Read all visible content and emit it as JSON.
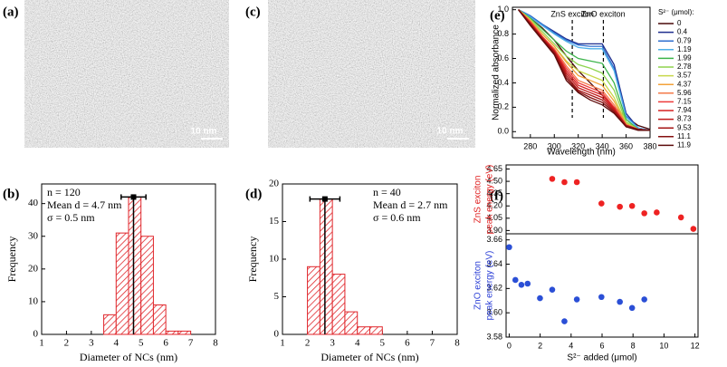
{
  "images": [
    {
      "label": "(a)",
      "scale_bar": "10 nm"
    },
    {
      "label": "(c)",
      "scale_bar": "10 nm"
    }
  ],
  "chart_data": [
    {
      "type": "histogram",
      "panel_label": "(b)",
      "xlabel": "Diameter of NCs (nm)",
      "ylabel": "Frequency",
      "bins": [
        3.5,
        4,
        4.5,
        5,
        5.5,
        6,
        6.5,
        7
      ],
      "counts": [
        6,
        31,
        42,
        30,
        9,
        1,
        1
      ],
      "color": "#e0262b",
      "xlim": [
        1,
        8
      ],
      "xticks": [
        1,
        2,
        3,
        4,
        5,
        6,
        7,
        8
      ],
      "ylim": [
        0,
        46
      ],
      "yticks": [
        0,
        10,
        20,
        30,
        40
      ],
      "annotations": [
        "n = 120",
        "Mean d = 4.7 nm",
        "σ  = 0.5 nm"
      ],
      "mean": {
        "x": 4.7,
        "error": 0.5,
        "y": 42
      }
    },
    {
      "type": "histogram",
      "panel_label": "(d)",
      "xlabel": "Diameter of NCs (nm)",
      "ylabel": "Frequency",
      "bins": [
        2,
        2.5,
        3,
        3.5,
        4,
        4.5,
        5
      ],
      "counts": [
        9,
        18,
        8,
        3,
        1,
        1
      ],
      "color": "#e0262b",
      "xlim": [
        1,
        8
      ],
      "xticks": [
        1,
        2,
        3,
        4,
        5,
        6,
        7,
        8
      ],
      "ylim": [
        0,
        20
      ],
      "yticks": [
        0,
        5,
        10,
        15,
        20
      ],
      "annotations": [
        "n = 40",
        "Mean d = 2.7 nm",
        "σ  = 0.6 nm"
      ],
      "mean": {
        "x": 2.7,
        "error": 0.6,
        "y": 18
      }
    },
    {
      "type": "line",
      "panel_label": "(e)",
      "xlabel": "Wavelength (nm)",
      "ylabel": "Normalized absorbance",
      "legend_title": "S²⁻ (μmol):",
      "legend": "right",
      "x": [
        270,
        280,
        290,
        300,
        310,
        320,
        330,
        340,
        350,
        360,
        370,
        380
      ],
      "xlim": [
        265,
        380
      ],
      "xticks": [
        280,
        300,
        320,
        340,
        360,
        380
      ],
      "ylim": [
        -0.05,
        1.02
      ],
      "yticks": [
        {
          "value": 0,
          "label": "0.0"
        },
        0.2,
        0.4,
        0.6,
        0.8,
        {
          "value": 1,
          "label": "1.0"
        }
      ],
      "annotations": [
        {
          "text": "ZnS exciton",
          "x": 315
        },
        {
          "text": "ZnO exciton",
          "x": 341
        }
      ],
      "series": [
        {
          "name": "0",
          "color": "#4a0a0a",
          "values": [
            1.0,
            0.93,
            0.85,
            0.75,
            0.62,
            0.5,
            0.4,
            0.3,
            0.2,
            0.12,
            0.05,
            0.02
          ]
        },
        {
          "name": "0.4",
          "color": "#1f2f8f",
          "values": [
            1.0,
            0.95,
            0.88,
            0.82,
            0.76,
            0.72,
            0.72,
            0.72,
            0.55,
            0.15,
            0.03,
            0.01
          ]
        },
        {
          "name": "0.79",
          "color": "#2f6fcf",
          "values": [
            1.0,
            0.95,
            0.88,
            0.81,
            0.75,
            0.71,
            0.7,
            0.7,
            0.52,
            0.13,
            0.03,
            0.01
          ]
        },
        {
          "name": "1.19",
          "color": "#4fb0e8",
          "values": [
            1.0,
            0.94,
            0.87,
            0.8,
            0.74,
            0.69,
            0.68,
            0.68,
            0.5,
            0.12,
            0.03,
            0.01
          ]
        },
        {
          "name": "1.99",
          "color": "#3cb44b",
          "values": [
            1.0,
            0.93,
            0.84,
            0.75,
            0.66,
            0.6,
            0.58,
            0.56,
            0.4,
            0.1,
            0.02,
            0.01
          ]
        },
        {
          "name": "2.78",
          "color": "#8fd44f",
          "values": [
            1.0,
            0.92,
            0.82,
            0.72,
            0.62,
            0.55,
            0.52,
            0.48,
            0.34,
            0.08,
            0.02,
            0.01
          ]
        },
        {
          "name": "3.57",
          "color": "#c8d84a",
          "values": [
            1.0,
            0.92,
            0.8,
            0.7,
            0.58,
            0.5,
            0.46,
            0.42,
            0.28,
            0.07,
            0.02,
            0.01
          ]
        },
        {
          "name": "4.37",
          "color": "#f3a23a",
          "values": [
            1.0,
            0.91,
            0.8,
            0.7,
            0.57,
            0.46,
            0.42,
            0.38,
            0.25,
            0.06,
            0.02,
            0.01
          ]
        },
        {
          "name": "5.96",
          "color": "#f47a4a",
          "values": [
            1.0,
            0.9,
            0.78,
            0.68,
            0.54,
            0.42,
            0.38,
            0.34,
            0.22,
            0.06,
            0.02,
            0.01
          ]
        },
        {
          "name": "7.15",
          "color": "#ee3b3b",
          "values": [
            1.0,
            0.9,
            0.78,
            0.67,
            0.52,
            0.4,
            0.36,
            0.32,
            0.2,
            0.05,
            0.02,
            0.01
          ]
        },
        {
          "name": "7.94",
          "color": "#d62020",
          "values": [
            1.0,
            0.89,
            0.77,
            0.66,
            0.5,
            0.38,
            0.34,
            0.3,
            0.19,
            0.05,
            0.02,
            0.01
          ]
        },
        {
          "name": "8.73",
          "color": "#c01818",
          "values": [
            1.0,
            0.89,
            0.77,
            0.66,
            0.48,
            0.36,
            0.32,
            0.28,
            0.18,
            0.05,
            0.02,
            0.01
          ]
        },
        {
          "name": "9.53",
          "color": "#a51515",
          "values": [
            1.0,
            0.88,
            0.76,
            0.65,
            0.46,
            0.34,
            0.3,
            0.26,
            0.17,
            0.05,
            0.02,
            0.01
          ]
        },
        {
          "name": "11.1",
          "color": "#851010",
          "values": [
            1.0,
            0.88,
            0.76,
            0.64,
            0.44,
            0.33,
            0.28,
            0.24,
            0.16,
            0.04,
            0.02,
            0.01
          ]
        },
        {
          "name": "11.9",
          "color": "#5e0c0c",
          "values": [
            1.0,
            0.87,
            0.75,
            0.63,
            0.42,
            0.32,
            0.26,
            0.22,
            0.15,
            0.04,
            0.01,
            0.01
          ]
        }
      ]
    },
    {
      "type": "scatter",
      "panel_label": "(f)",
      "ylabel": [
        "ZnS exciton",
        "peak energy (eV)"
      ],
      "ylabel_color": "#e02020",
      "color": "#ee2222",
      "x": [
        2.78,
        3.57,
        4.37,
        5.96,
        7.15,
        7.94,
        8.73,
        9.53,
        11.1,
        11.9
      ],
      "values": [
        4.53,
        4.49,
        4.49,
        4.23,
        4.19,
        4.2,
        4.11,
        4.12,
        4.06,
        3.92
      ],
      "xlim": [
        -0.2,
        12.2
      ],
      "ylim": [
        3.86,
        4.7
      ],
      "yticks": [
        {
          "value": 3.9,
          "label": "3.90"
        },
        4.05,
        {
          "value": 4.2,
          "label": "4.20"
        },
        4.35,
        {
          "value": 4.5,
          "label": "4.50"
        },
        4.65
      ]
    },
    {
      "type": "scatter",
      "ylabel": [
        "ZnO exciton",
        "peak energy (eV)"
      ],
      "ylabel_color": "#2b3fd6",
      "color": "#2b4fd6",
      "xlabel": "S²⁻ added (μmol)",
      "x": [
        0,
        0.4,
        0.79,
        1.19,
        1.99,
        2.78,
        3.57,
        4.37,
        5.96,
        7.15,
        7.94,
        8.73
      ],
      "values": [
        3.654,
        3.627,
        3.623,
        3.624,
        3.612,
        3.619,
        3.593,
        3.611,
        3.613,
        3.609,
        3.604,
        3.611
      ],
      "xlim": [
        -0.2,
        12.2
      ],
      "xticks": [
        0,
        2,
        4,
        6,
        8,
        10,
        12
      ],
      "ylim": [
        3.58,
        3.665
      ],
      "yticks": [
        3.58,
        {
          "value": 3.6,
          "label": "3.60"
        },
        3.62,
        3.64,
        3.66
      ]
    }
  ]
}
